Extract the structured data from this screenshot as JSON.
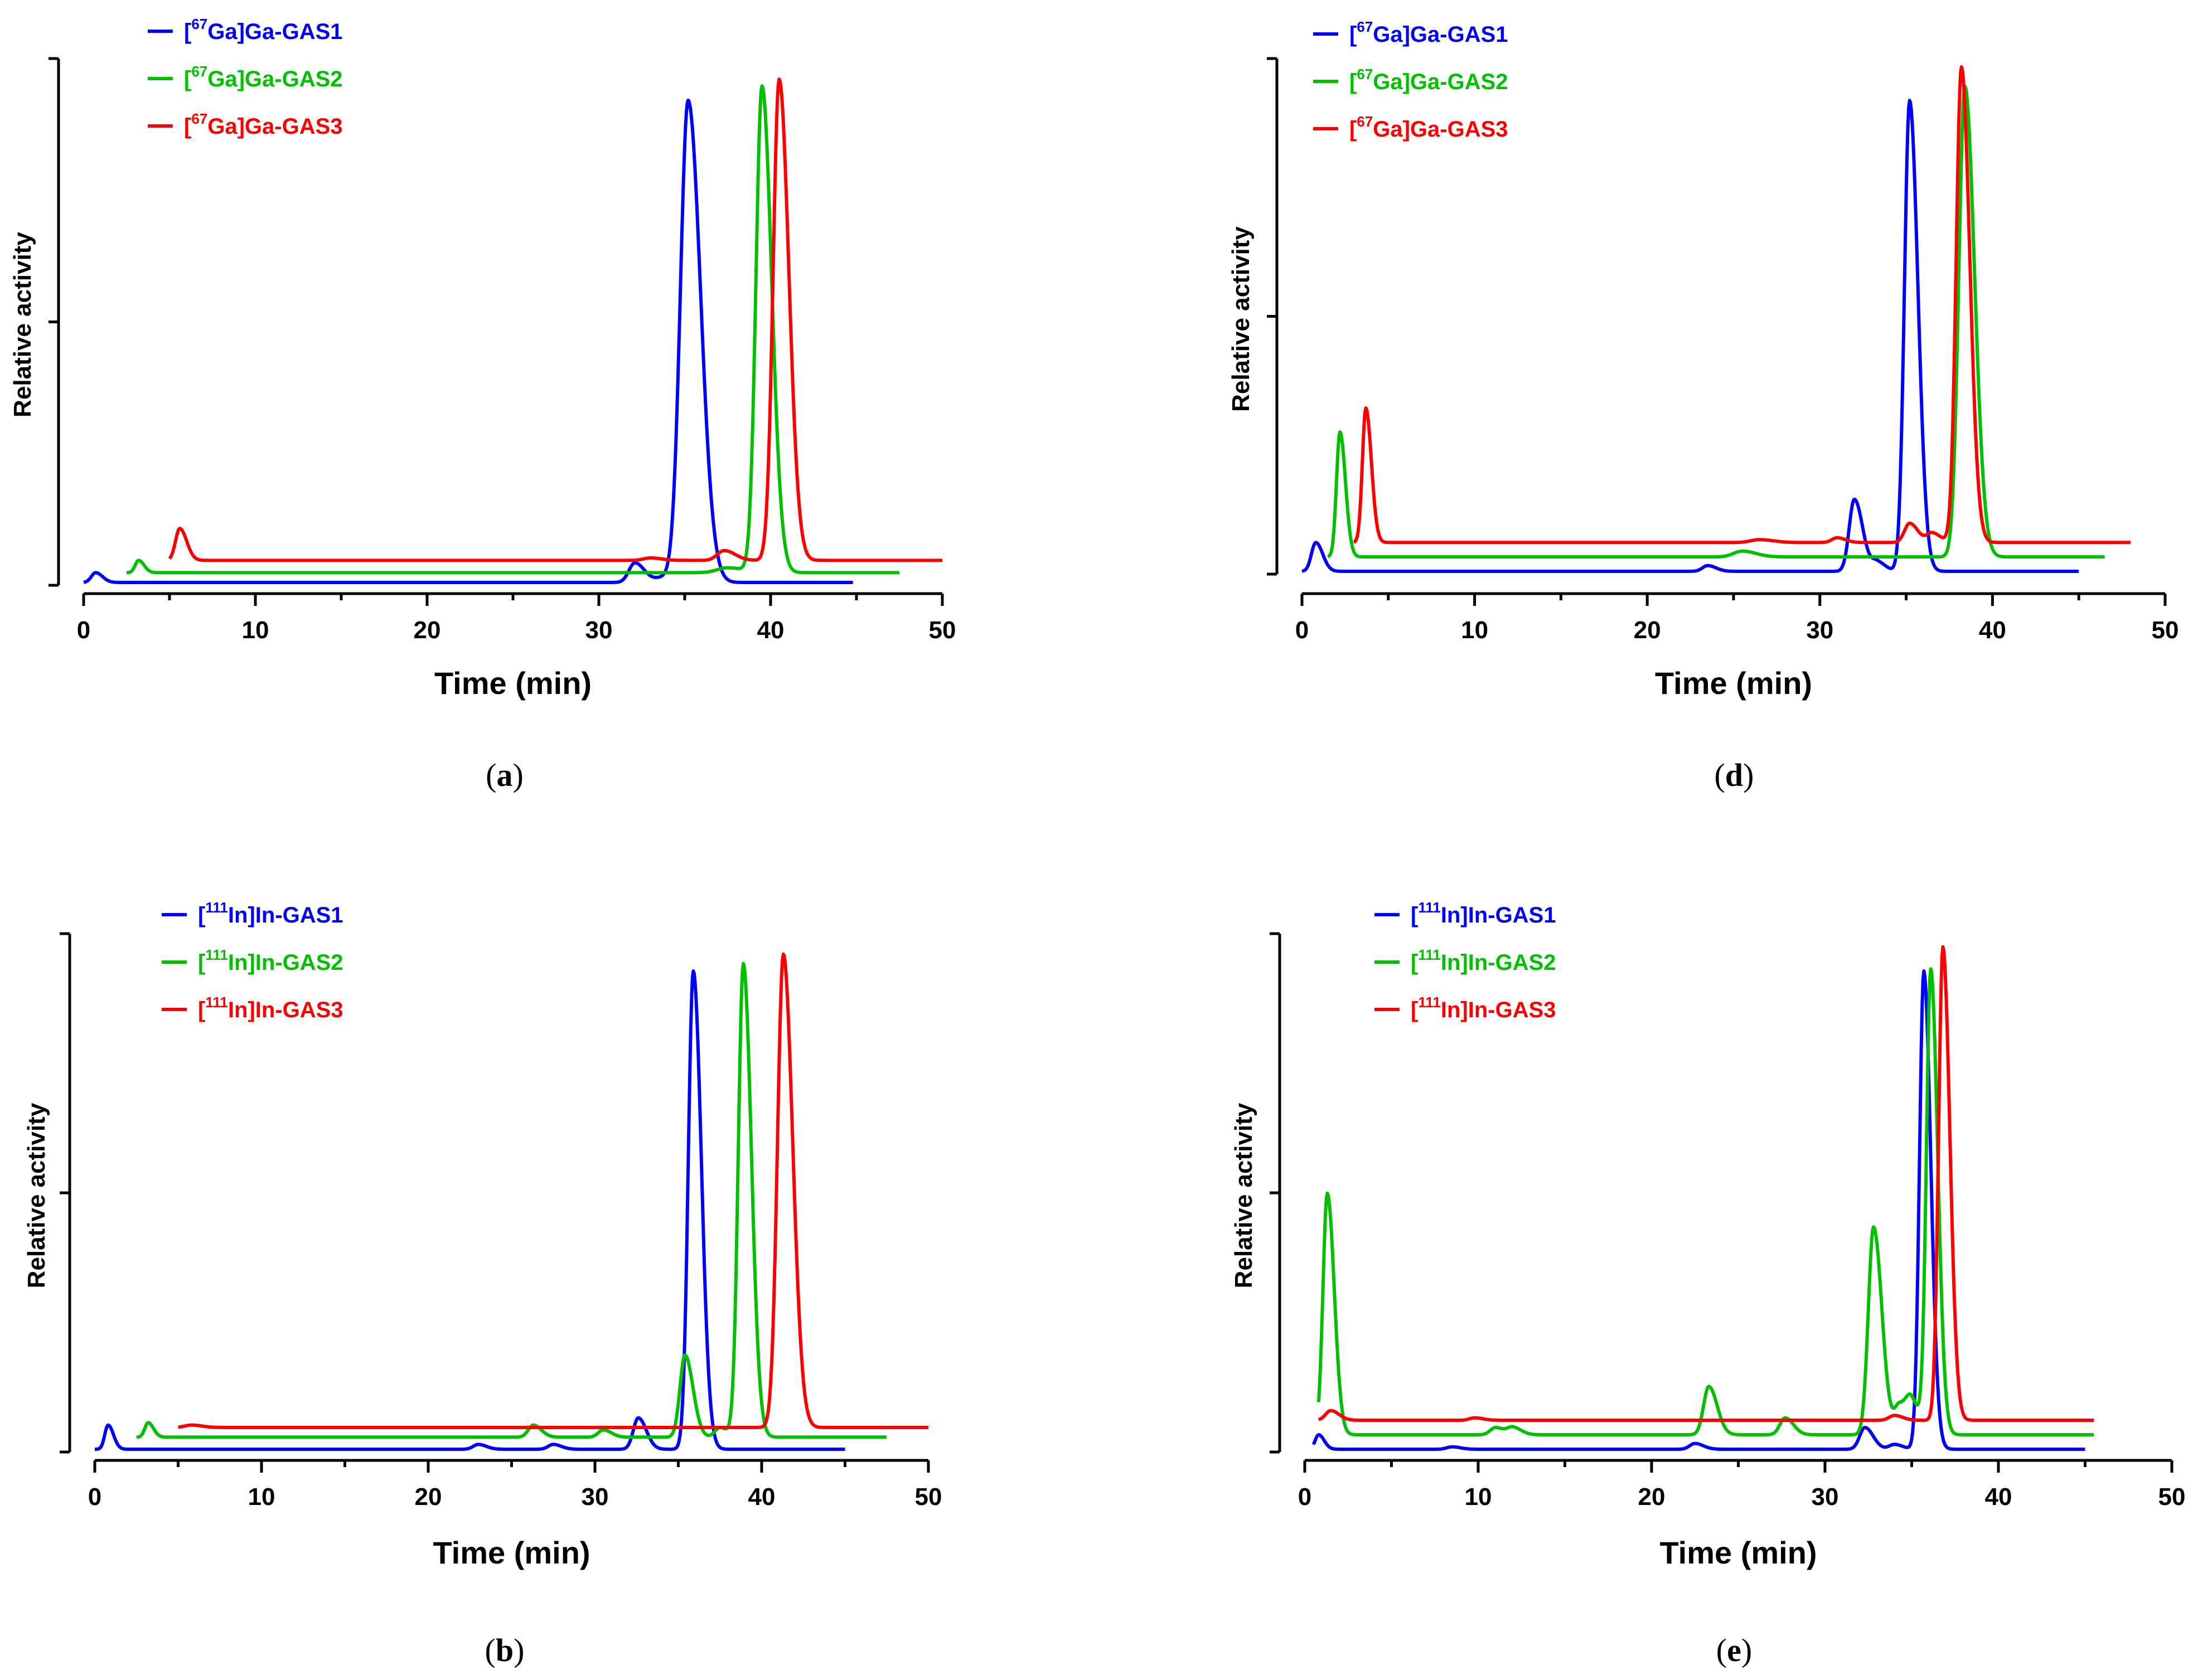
{
  "colors": {
    "blue": "#0000ff",
    "green": "#00c000",
    "red": "#ff0000"
  },
  "chart_data": [
    {
      "id": "a",
      "type": "line",
      "panel_label": "a",
      "title": "",
      "xlabel": "Time (min)",
      "ylabel": "Relative activity",
      "xlim": [
        0,
        50
      ],
      "ylim": [
        0,
        1.05
      ],
      "xticks": [
        "0",
        "10",
        "20",
        "30",
        "40",
        "50"
      ],
      "yticks_count": 3,
      "grid": false,
      "legend_position": "top-left",
      "series": [
        {
          "name": "GAS1",
          "prefix": "[",
          "sup": "67",
          "suffix": "Ga]Ga-GAS1",
          "color": "blue",
          "start": 0,
          "end": 44.8,
          "baseline": 0.0,
          "peaks": [
            [
              0.7,
              0.02,
              0.25
            ],
            [
              32.1,
              0.04,
              0.35
            ],
            [
              33.8,
              0.01,
              0.5
            ],
            [
              35.2,
              0.98,
              0.45
            ]
          ]
        },
        {
          "name": "GAS2",
          "prefix": "[",
          "sup": "67",
          "suffix": "Ga]Ga-GAS2",
          "color": "green",
          "start": 2.5,
          "end": 47.5,
          "baseline": 0.02,
          "peaks": [
            [
              3.2,
              0.025,
              0.2
            ],
            [
              37.5,
              0.01,
              0.6
            ],
            [
              39.5,
              0.99,
              0.35
            ]
          ]
        },
        {
          "name": "GAS3",
          "prefix": "[",
          "sup": "67",
          "suffix": "Ga]Ga-GAS3",
          "color": "red",
          "start": 5,
          "end": 50,
          "baseline": 0.045,
          "peaks": [
            [
              5.6,
              0.065,
              0.25
            ],
            [
              33,
              0.005,
              0.4
            ],
            [
              37.3,
              0.02,
              0.4
            ],
            [
              40.5,
              0.98,
              0.35
            ]
          ]
        }
      ]
    },
    {
      "id": "d",
      "type": "line",
      "panel_label": "d",
      "title": "",
      "xlabel": "Time (min)",
      "ylabel": "Relative activity",
      "xlim": [
        0,
        50
      ],
      "ylim": [
        0,
        1.05
      ],
      "xticks": [
        "0",
        "10",
        "20",
        "30",
        "40",
        "50"
      ],
      "yticks_count": 3,
      "grid": false,
      "legend_position": "top-left",
      "series": [
        {
          "name": "GAS1",
          "prefix": "[",
          "sup": "67",
          "suffix": "Ga]Ga-GAS1",
          "color": "blue",
          "start": 0,
          "end": 45,
          "baseline": 0.0,
          "peaks": [
            [
              0.8,
              0.06,
              0.25
            ],
            [
              23.5,
              0.012,
              0.3
            ],
            [
              32.0,
              0.15,
              0.3
            ],
            [
              33.3,
              0.02,
              0.3
            ],
            [
              35.2,
              0.98,
              0.3
            ]
          ]
        },
        {
          "name": "GAS2",
          "prefix": "[",
          "sup": "67",
          "suffix": "Ga]Ga-GAS2",
          "color": "green",
          "start": 1.5,
          "end": 46.5,
          "baseline": 0.03,
          "peaks": [
            [
              2.2,
              0.26,
              0.2
            ],
            [
              25.5,
              0.012,
              0.5
            ],
            [
              38.4,
              0.98,
              0.35
            ]
          ]
        },
        {
          "name": "GAS3",
          "prefix": "[",
          "sup": "67",
          "suffix": "Ga]Ga-GAS3",
          "color": "red",
          "start": 3,
          "end": 48,
          "baseline": 0.06,
          "peaks": [
            [
              3.7,
              0.28,
              0.2
            ],
            [
              26.5,
              0.006,
              0.5
            ],
            [
              31,
              0.01,
              0.3
            ],
            [
              35.2,
              0.04,
              0.3
            ],
            [
              36.5,
              0.02,
              0.3
            ],
            [
              38.2,
              0.99,
              0.3
            ]
          ]
        }
      ]
    },
    {
      "id": "b",
      "type": "line",
      "panel_label": "b",
      "title": "",
      "xlabel": "Time (min)",
      "ylabel": "Relative activity",
      "xlim": [
        0,
        50
      ],
      "ylim": [
        0,
        1.05
      ],
      "xticks": [
        "0",
        "10",
        "20",
        "30",
        "40",
        "50"
      ],
      "yticks_count": 3,
      "grid": false,
      "legend_position": "top-left",
      "series": [
        {
          "name": "GAS1",
          "prefix": "[",
          "sup": "111",
          "suffix": "In]In-GAS1",
          "color": "blue",
          "start": 0,
          "end": 45,
          "baseline": 0.0,
          "peaks": [
            [
              0.8,
              0.05,
              0.2
            ],
            [
              23,
              0.01,
              0.3
            ],
            [
              27.5,
              0.01,
              0.3
            ],
            [
              32.6,
              0.065,
              0.3
            ],
            [
              35.9,
              0.99,
              0.3
            ]
          ]
        },
        {
          "name": "GAS2",
          "prefix": "[",
          "sup": "111",
          "suffix": "In]In-GAS2",
          "color": "green",
          "start": 2.5,
          "end": 47.5,
          "baseline": 0.025,
          "peaks": [
            [
              3.2,
              0.03,
              0.2
            ],
            [
              26.3,
              0.025,
              0.3
            ],
            [
              30.5,
              0.015,
              0.3
            ],
            [
              35.4,
              0.17,
              0.3
            ],
            [
              37.5,
              0.02,
              0.3
            ],
            [
              38.9,
              0.98,
              0.3
            ]
          ]
        },
        {
          "name": "GAS3",
          "prefix": "[",
          "sup": "111",
          "suffix": "In]In-GAS3",
          "color": "red",
          "start": 5,
          "end": 50,
          "baseline": 0.045,
          "peaks": [
            [
              5.8,
              0.005,
              0.4
            ],
            [
              41.3,
              0.98,
              0.35
            ]
          ]
        }
      ]
    },
    {
      "id": "e",
      "type": "line",
      "panel_label": "e",
      "title": "",
      "xlabel": "Time (min)",
      "ylabel": "Relative activity",
      "xlim": [
        0,
        50
      ],
      "ylim": [
        0,
        1.05
      ],
      "xticks": [
        "0",
        "10",
        "20",
        "30",
        "40",
        "50"
      ],
      "yticks_count": 3,
      "grid": false,
      "legend_position": "top-left",
      "series": [
        {
          "name": "GAS1",
          "prefix": "[",
          "sup": "111",
          "suffix": "In]In-GAS1",
          "color": "blue",
          "start": 0.5,
          "end": 45,
          "baseline": 0.0,
          "peaks": [
            [
              0.8,
              0.03,
              0.2
            ],
            [
              8.5,
              0.005,
              0.3
            ],
            [
              22.5,
              0.012,
              0.3
            ],
            [
              32.3,
              0.045,
              0.3
            ],
            [
              34,
              0.01,
              0.3
            ],
            [
              35.7,
              0.99,
              0.25
            ]
          ]
        },
        {
          "name": "GAS2",
          "prefix": "[",
          "sup": "111",
          "suffix": "In]In-GAS2",
          "color": "green",
          "start": 0.8,
          "end": 45.5,
          "baseline": 0.03,
          "peaks": [
            [
              1.3,
              0.5,
              0.25
            ],
            [
              11,
              0.015,
              0.3
            ],
            [
              12,
              0.015,
              0.3
            ],
            [
              23.3,
              0.1,
              0.3
            ],
            [
              27.7,
              0.035,
              0.3
            ],
            [
              32.8,
              0.43,
              0.3
            ],
            [
              34.3,
              0.06,
              0.3
            ],
            [
              35,
              0.06,
              0.3
            ],
            [
              36.1,
              0.96,
              0.25
            ]
          ]
        },
        {
          "name": "GAS3",
          "prefix": "[",
          "sup": "111",
          "suffix": "In]In-GAS3",
          "color": "red",
          "start": 0.8,
          "end": 45.5,
          "baseline": 0.06,
          "peaks": [
            [
              1.5,
              0.02,
              0.3
            ],
            [
              9.8,
              0.005,
              0.3
            ],
            [
              34,
              0.01,
              0.3
            ],
            [
              36.8,
              0.98,
              0.25
            ]
          ]
        }
      ]
    }
  ]
}
